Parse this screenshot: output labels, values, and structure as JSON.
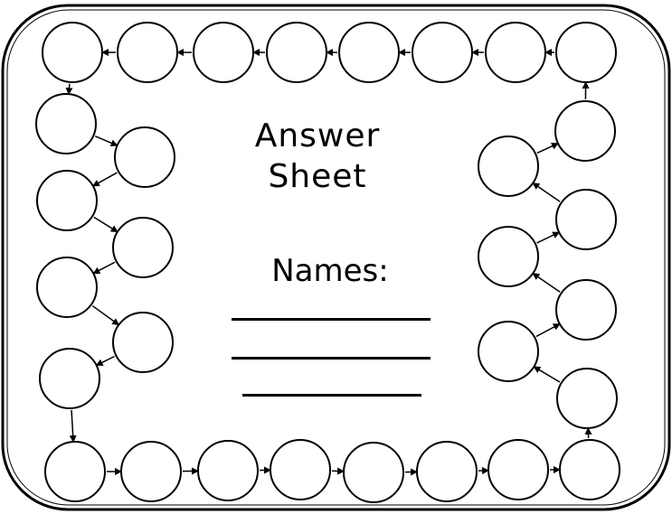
{
  "sheet": {
    "title_line_1": "Answer",
    "title_line_2": "Sheet",
    "names_label": "Names:",
    "name_lines": 3,
    "answer_circles": 30
  }
}
